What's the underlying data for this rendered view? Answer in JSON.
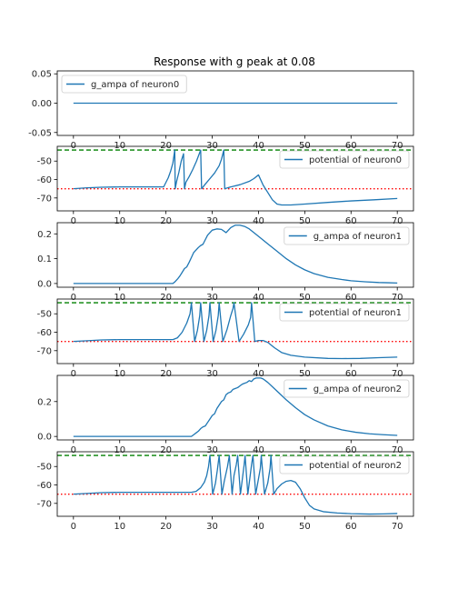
{
  "chart_data": {
    "title": "Response with g peak at 0.08",
    "x_ticks": [
      0,
      10,
      20,
      30,
      40,
      50,
      60,
      70
    ],
    "xlim": [
      -3.5,
      73.5
    ],
    "line_color": "#1f77b4",
    "rest_line_color": "#ff0000",
    "threshold_line_color": "#008000",
    "panels": [
      {
        "type": "line",
        "legend": "g_ampa of neuron0",
        "legend_loc": "upper-left",
        "ylim": [
          -0.055,
          0.055
        ],
        "y_ticks": [
          -0.05,
          0.0,
          0.05
        ],
        "y_tick_labels": [
          "-0.05",
          "0.00",
          "0.05"
        ],
        "x": [
          0,
          70
        ],
        "y": [
          0,
          0
        ]
      },
      {
        "type": "line",
        "legend": "potential of neuron0",
        "legend_loc": "upper-right",
        "ylim": [
          -77,
          -42
        ],
        "y_ticks": [
          -70,
          -60,
          -50
        ],
        "y_tick_labels": [
          "-70",
          "-60",
          "-50"
        ],
        "rest_level": -65,
        "threshold_level": -44,
        "x": [
          0,
          3,
          6,
          10,
          15,
          19.5,
          20.5,
          21,
          21.5,
          21.9,
          22,
          22.3,
          22.8,
          23.3,
          23.8,
          24,
          24.3,
          25,
          25.8,
          26.6,
          27.2,
          27.5,
          27.7,
          28.5,
          29.5,
          30.5,
          31.5,
          32,
          32.5,
          32.7,
          34,
          36,
          38,
          39,
          40,
          41,
          42,
          43,
          44,
          45,
          47,
          50,
          55,
          60,
          65,
          70
        ],
        "y": [
          -65,
          -64.5,
          -64.2,
          -64,
          -64,
          -64,
          -59,
          -55.5,
          -51,
          -44,
          -65,
          -61,
          -56,
          -50,
          -46,
          -65,
          -61.5,
          -58.5,
          -54.5,
          -50,
          -46,
          -44,
          -65,
          -62.5,
          -59.5,
          -56.5,
          -52.5,
          -49,
          -44,
          -65,
          -64,
          -62.8,
          -61,
          -59.5,
          -57.5,
          -63,
          -67,
          -71,
          -73.3,
          -73.8,
          -73.8,
          -73.3,
          -72.4,
          -71.6,
          -71,
          -70.3
        ]
      },
      {
        "type": "line",
        "legend": "g_ampa of neuron1",
        "legend_loc": "upper-right",
        "ylim": [
          -0.015,
          0.245
        ],
        "y_ticks": [
          0.0,
          0.1,
          0.2
        ],
        "y_tick_labels": [
          "0.0",
          "0.1",
          "0.2"
        ],
        "x": [
          0,
          10,
          21.5,
          22,
          22.5,
          23,
          23.5,
          24,
          24.5,
          25,
          25.5,
          26,
          27,
          27.5,
          28,
          29,
          30,
          31,
          32,
          33,
          34,
          35,
          36,
          37,
          38,
          40,
          42,
          44,
          46,
          48,
          50,
          52,
          55,
          58,
          60,
          63,
          66,
          68,
          70
        ],
        "y": [
          0,
          0,
          0,
          0.008,
          0.018,
          0.03,
          0.045,
          0.06,
          0.067,
          0.085,
          0.105,
          0.125,
          0.145,
          0.153,
          0.158,
          0.195,
          0.215,
          0.22,
          0.218,
          0.205,
          0.225,
          0.235,
          0.235,
          0.23,
          0.22,
          0.19,
          0.16,
          0.13,
          0.1,
          0.075,
          0.055,
          0.04,
          0.025,
          0.016,
          0.011,
          0.007,
          0.004,
          0.003,
          0.002
        ]
      },
      {
        "type": "line",
        "legend": "potential of neuron1",
        "legend_loc": "upper-right",
        "ylim": [
          -77,
          -42
        ],
        "y_ticks": [
          -70,
          -60,
          -50
        ],
        "y_tick_labels": [
          "-70",
          "-60",
          "-50"
        ],
        "rest_level": -65,
        "threshold_level": -44,
        "x": [
          0,
          3,
          6,
          10,
          15,
          19,
          21.5,
          22.5,
          23.5,
          24.5,
          25.2,
          25.5,
          26.2,
          26.8,
          27.3,
          27.5,
          28.2,
          28.8,
          29.3,
          29.5,
          30.2,
          30.8,
          31.3,
          31.5,
          32.3,
          33.2,
          34,
          34.5,
          34.7,
          35.8,
          36.8,
          37.8,
          38.3,
          38.5,
          39.2,
          40,
          41,
          42,
          43.5,
          45,
          47,
          50,
          55,
          58,
          62,
          66,
          70
        ],
        "y": [
          -65,
          -64.6,
          -64.2,
          -64,
          -64,
          -64,
          -64,
          -63,
          -60,
          -55,
          -50,
          -44,
          -65,
          -59,
          -51,
          -44,
          -65,
          -59,
          -51,
          -44,
          -65,
          -59,
          -51,
          -44,
          -65,
          -58.5,
          -51,
          -47,
          -44,
          -65,
          -61,
          -56,
          -52,
          -44,
          -65,
          -64.5,
          -64.5,
          -65.5,
          -68.5,
          -71,
          -72.5,
          -73.5,
          -74.2,
          -74.3,
          -74.2,
          -73.8,
          -73.5
        ]
      },
      {
        "type": "line",
        "legend": "g_ampa of neuron2",
        "legend_loc": "upper-right",
        "ylim": [
          -0.02,
          0.35
        ],
        "y_ticks": [
          0.0,
          0.2
        ],
        "y_tick_labels": [
          "0.0",
          "0.2"
        ],
        "x": [
          0,
          10,
          20,
          25.5,
          26,
          26.5,
          27,
          27.5,
          28,
          28.5,
          29,
          29.5,
          30,
          30.5,
          31,
          31.5,
          32,
          32.5,
          33,
          33.5,
          34,
          34.5,
          35,
          35.5,
          36,
          36.5,
          37,
          37.5,
          38,
          38.5,
          39,
          39.5,
          40,
          40.5,
          41,
          42,
          44,
          46,
          48,
          50,
          52,
          55,
          58,
          61,
          64,
          67,
          70
        ],
        "y": [
          0,
          0,
          0,
          0,
          0.01,
          0.02,
          0.03,
          0.045,
          0.055,
          0.06,
          0.08,
          0.1,
          0.12,
          0.13,
          0.16,
          0.18,
          0.2,
          0.21,
          0.24,
          0.25,
          0.255,
          0.27,
          0.275,
          0.28,
          0.29,
          0.3,
          0.305,
          0.31,
          0.32,
          0.315,
          0.33,
          0.335,
          0.335,
          0.335,
          0.33,
          0.31,
          0.26,
          0.21,
          0.165,
          0.125,
          0.095,
          0.06,
          0.038,
          0.024,
          0.015,
          0.01,
          0.006
        ]
      },
      {
        "type": "line",
        "legend": "potential of neuron2",
        "legend_loc": "upper-right",
        "ylim": [
          -77,
          -42
        ],
        "y_ticks": [
          -70,
          -60,
          -50
        ],
        "y_tick_labels": [
          "-70",
          "-60",
          "-50"
        ],
        "rest_level": -65,
        "threshold_level": -44,
        "x": [
          0,
          3,
          6,
          10,
          15,
          20,
          25.5,
          26.5,
          27.5,
          28.3,
          28.8,
          29.2,
          29.5,
          30.1,
          30.7,
          31.1,
          31.5,
          32.1,
          32.6,
          33.3,
          33.7,
          34.3,
          34.7,
          35.2,
          35.5,
          36.1,
          36.5,
          36.9,
          37.1,
          37.7,
          38.1,
          38.5,
          38.8,
          39.4,
          39.9,
          40.4,
          40.6,
          41.3,
          42,
          42.5,
          42.7,
          43.3,
          44,
          45,
          46,
          47,
          48,
          49,
          50,
          51,
          52,
          54,
          57,
          60,
          64,
          67,
          70
        ],
        "y": [
          -65,
          -64.6,
          -64.2,
          -64,
          -64,
          -64,
          -64,
          -63.5,
          -61.5,
          -58.5,
          -55,
          -50,
          -44,
          -65,
          -59,
          -52,
          -44,
          -65,
          -58,
          -50,
          -44,
          -65,
          -55,
          -49,
          -44,
          -65,
          -57,
          -49,
          -44,
          -65,
          -57,
          -49,
          -44,
          -65,
          -58,
          -51,
          -44,
          -65,
          -59,
          -51,
          -44,
          -65,
          -62,
          -59.5,
          -58,
          -57.6,
          -58.5,
          -62,
          -67,
          -71,
          -73,
          -74.5,
          -75.2,
          -75.6,
          -75.8,
          -75.7,
          -75.5
        ]
      }
    ]
  }
}
